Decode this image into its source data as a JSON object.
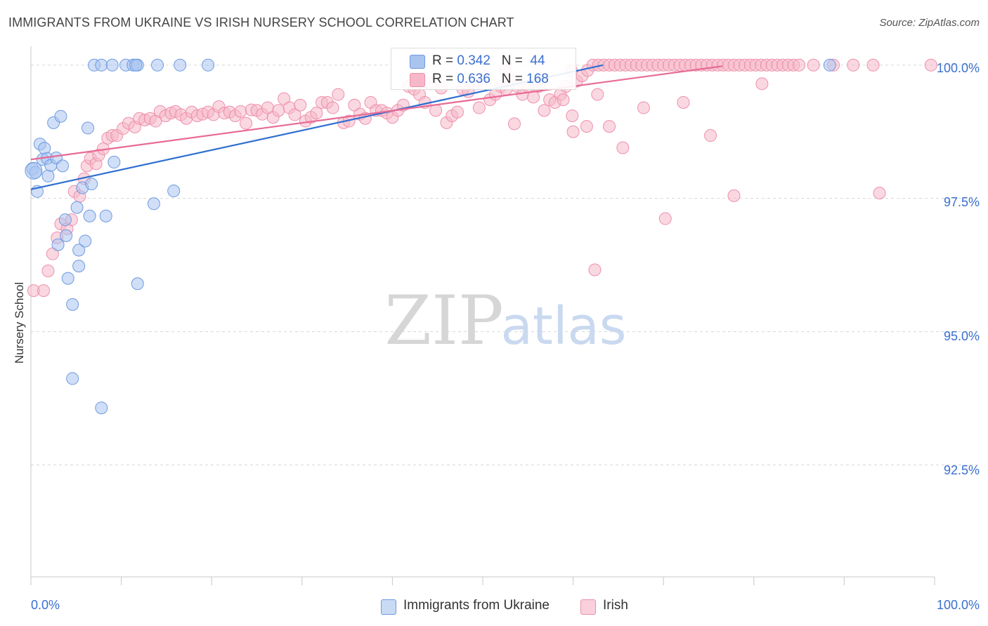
{
  "header": {
    "title": "IMMIGRANTS FROM UKRAINE VS IRISH NURSERY SCHOOL CORRELATION CHART",
    "source": "Source: ZipAtlas.com"
  },
  "watermark": {
    "zip": "ZIP",
    "atlas": "atlas"
  },
  "stats": {
    "ukraine": {
      "r_label": "R = ",
      "r_value": "0.342",
      "n_label": "N = ",
      "n_value": "44"
    },
    "irish": {
      "r_label": "R = ",
      "r_value": "0.636",
      "n_label": "N = ",
      "n_value": "168"
    }
  },
  "legend": {
    "ukraine": "Immigrants from Ukraine",
    "irish": "Irish"
  },
  "colors": {
    "ukraine_fill": "#aac4f0",
    "ukraine_stroke": "#6e9ae0",
    "ukraine_line": "#2f6fd0",
    "irish_fill": "#f6b8c8",
    "irish_stroke": "#ee8fac",
    "irish_line": "#e76a94",
    "grid": "#d8d8d8",
    "tick_text": "#3a6fd0"
  },
  "chart_data": {
    "type": "scatter",
    "title": "IMMIGRANTS FROM UKRAINE VS IRISH NURSERY SCHOOL CORRELATION CHART",
    "xlabel": "",
    "ylabel": "Nursery School",
    "xlim": [
      0,
      100
    ],
    "ylim": [
      90.4,
      100.3
    ],
    "x_tick_labels": [
      "0.0%",
      "100.0%"
    ],
    "y_ticks": [
      92.5,
      95.0,
      97.5,
      100.0
    ],
    "y_tick_labels": [
      "92.5%",
      "95.0%",
      "97.5%",
      "100.0%"
    ],
    "series": [
      {
        "name": "Immigrants from Ukraine",
        "r": 0.342,
        "n": 44,
        "trend": {
          "x": [
            0,
            63.3
          ],
          "y": [
            97.67,
            100.0
          ]
        },
        "points": [
          [
            0.2,
            98.05
          ],
          [
            0.5,
            97.99
          ],
          [
            0.7,
            97.63
          ],
          [
            1.0,
            98.52
          ],
          [
            1.3,
            98.23
          ],
          [
            1.5,
            98.44
          ],
          [
            1.8,
            98.25
          ],
          [
            1.9,
            97.92
          ],
          [
            2.2,
            98.12
          ],
          [
            2.5,
            98.92
          ],
          [
            2.8,
            98.26
          ],
          [
            3.3,
            99.04
          ],
          [
            3.5,
            98.11
          ],
          [
            3.0,
            96.63
          ],
          [
            3.8,
            97.1
          ],
          [
            3.9,
            96.8
          ],
          [
            4.1,
            96.0
          ],
          [
            4.6,
            95.51
          ],
          [
            4.6,
            94.12
          ],
          [
            5.1,
            97.33
          ],
          [
            5.3,
            96.53
          ],
          [
            5.3,
            96.23
          ],
          [
            5.7,
            97.7
          ],
          [
            6.0,
            96.7
          ],
          [
            6.3,
            98.82
          ],
          [
            6.5,
            97.17
          ],
          [
            6.7,
            97.77
          ],
          [
            7.0,
            100.0
          ],
          [
            7.8,
            100.0
          ],
          [
            7.8,
            93.57
          ],
          [
            8.3,
            97.17
          ],
          [
            9.0,
            100.0
          ],
          [
            9.2,
            98.18
          ],
          [
            10.5,
            100.0
          ],
          [
            11.3,
            100.0
          ],
          [
            11.8,
            100.0
          ],
          [
            11.6,
            100.0
          ],
          [
            11.8,
            95.9
          ],
          [
            13.6,
            97.4
          ],
          [
            14.0,
            100.0
          ],
          [
            15.8,
            97.64
          ],
          [
            16.5,
            100.0
          ],
          [
            19.6,
            100.0
          ],
          [
            88.4,
            100.0
          ]
        ]
      },
      {
        "name": "Irish",
        "r": 0.636,
        "n": 168,
        "trend": {
          "x": [
            0,
            76.5
          ],
          "y": [
            98.23,
            99.98
          ]
        },
        "points": [
          [
            0.3,
            95.77
          ],
          [
            1.4,
            95.77
          ],
          [
            1.9,
            96.14
          ],
          [
            2.4,
            96.46
          ],
          [
            2.9,
            96.76
          ],
          [
            3.3,
            97.02
          ],
          [
            4.0,
            96.93
          ],
          [
            4.5,
            97.1
          ],
          [
            4.8,
            97.63
          ],
          [
            5.4,
            97.54
          ],
          [
            5.9,
            97.87
          ],
          [
            6.2,
            98.11
          ],
          [
            6.6,
            98.25
          ],
          [
            7.2,
            98.15
          ],
          [
            7.5,
            98.31
          ],
          [
            8.0,
            98.43
          ],
          [
            8.5,
            98.63
          ],
          [
            9.0,
            98.68
          ],
          [
            9.5,
            98.68
          ],
          [
            10.2,
            98.81
          ],
          [
            10.8,
            98.91
          ],
          [
            11.5,
            98.84
          ],
          [
            12.0,
            99.0
          ],
          [
            12.6,
            98.97
          ],
          [
            13.2,
            99.0
          ],
          [
            13.8,
            98.95
          ],
          [
            14.3,
            99.13
          ],
          [
            14.9,
            99.05
          ],
          [
            15.5,
            99.1
          ],
          [
            16.0,
            99.13
          ],
          [
            16.6,
            99.07
          ],
          [
            17.2,
            99.0
          ],
          [
            17.8,
            99.12
          ],
          [
            18.4,
            99.05
          ],
          [
            19.0,
            99.08
          ],
          [
            19.6,
            99.12
          ],
          [
            20.2,
            99.07
          ],
          [
            20.8,
            99.22
          ],
          [
            21.4,
            99.1
          ],
          [
            22.0,
            99.12
          ],
          [
            22.6,
            99.05
          ],
          [
            23.2,
            99.13
          ],
          [
            23.8,
            98.91
          ],
          [
            24.4,
            99.16
          ],
          [
            25.0,
            99.15
          ],
          [
            25.6,
            99.08
          ],
          [
            26.2,
            99.2
          ],
          [
            26.8,
            99.02
          ],
          [
            27.4,
            99.15
          ],
          [
            28.0,
            99.37
          ],
          [
            28.6,
            99.2
          ],
          [
            29.2,
            99.07
          ],
          [
            29.8,
            99.25
          ],
          [
            30.4,
            98.95
          ],
          [
            31.0,
            99.02
          ],
          [
            31.6,
            99.1
          ],
          [
            32.2,
            99.3
          ],
          [
            32.8,
            99.3
          ],
          [
            33.4,
            99.2
          ],
          [
            34.0,
            99.45
          ],
          [
            34.6,
            98.92
          ],
          [
            35.2,
            98.95
          ],
          [
            35.8,
            99.25
          ],
          [
            36.4,
            99.08
          ],
          [
            37.0,
            99.0
          ],
          [
            37.6,
            99.3
          ],
          [
            38.2,
            99.15
          ],
          [
            38.8,
            99.15
          ],
          [
            39.4,
            99.1
          ],
          [
            40.0,
            99.02
          ],
          [
            40.6,
            99.15
          ],
          [
            41.2,
            99.25
          ],
          [
            41.8,
            99.6
          ],
          [
            42.4,
            99.55
          ],
          [
            43.0,
            99.45
          ],
          [
            43.6,
            99.3
          ],
          [
            44.2,
            99.65
          ],
          [
            44.8,
            99.15
          ],
          [
            45.4,
            99.57
          ],
          [
            46.0,
            98.92
          ],
          [
            46.6,
            99.05
          ],
          [
            47.2,
            99.12
          ],
          [
            47.8,
            99.55
          ],
          [
            48.4,
            99.5
          ],
          [
            49.0,
            99.65
          ],
          [
            49.6,
            99.2
          ],
          [
            50.2,
            99.8
          ],
          [
            50.8,
            99.35
          ],
          [
            51.4,
            99.45
          ],
          [
            52.0,
            99.6
          ],
          [
            52.6,
            99.55
          ],
          [
            53.2,
            99.7
          ],
          [
            53.8,
            99.6
          ],
          [
            54.4,
            99.45
          ],
          [
            55.0,
            99.6
          ],
          [
            55.6,
            99.4
          ],
          [
            56.2,
            99.6
          ],
          [
            56.8,
            99.15
          ],
          [
            57.4,
            99.35
          ],
          [
            58.0,
            99.3
          ],
          [
            58.6,
            99.45
          ],
          [
            59.2,
            99.6
          ],
          [
            59.8,
            99.9
          ],
          [
            60.4,
            99.7
          ],
          [
            61.0,
            99.8
          ],
          [
            61.6,
            99.9
          ],
          [
            62.2,
            100.0
          ],
          [
            62.8,
            100.0
          ],
          [
            63.4,
            100.0
          ],
          [
            64.0,
            100.0
          ],
          [
            64.6,
            100.0
          ],
          [
            65.2,
            100.0
          ],
          [
            65.8,
            100.0
          ],
          [
            66.4,
            100.0
          ],
          [
            67.0,
            100.0
          ],
          [
            67.6,
            100.0
          ],
          [
            68.2,
            100.0
          ],
          [
            68.8,
            100.0
          ],
          [
            69.4,
            100.0
          ],
          [
            70.0,
            100.0
          ],
          [
            70.6,
            100.0
          ],
          [
            71.2,
            100.0
          ],
          [
            71.8,
            100.0
          ],
          [
            72.4,
            100.0
          ],
          [
            73.0,
            100.0
          ],
          [
            73.6,
            100.0
          ],
          [
            74.2,
            100.0
          ],
          [
            74.8,
            100.0
          ],
          [
            75.4,
            100.0
          ],
          [
            76.0,
            100.0
          ],
          [
            76.6,
            100.0
          ],
          [
            77.2,
            100.0
          ],
          [
            77.8,
            100.0
          ],
          [
            78.4,
            100.0
          ],
          [
            79.0,
            100.0
          ],
          [
            79.6,
            100.0
          ],
          [
            80.2,
            100.0
          ],
          [
            80.8,
            100.0
          ],
          [
            81.4,
            100.0
          ],
          [
            82.0,
            100.0
          ],
          [
            82.6,
            100.0
          ],
          [
            83.2,
            100.0
          ],
          [
            83.8,
            100.0
          ],
          [
            84.4,
            100.0
          ],
          [
            85.0,
            100.0
          ],
          [
            86.6,
            100.0
          ],
          [
            88.8,
            100.0
          ],
          [
            91.0,
            100.0
          ],
          [
            93.2,
            100.0
          ],
          [
            99.6,
            100.0
          ],
          [
            52.5,
            99.9
          ],
          [
            53.5,
            98.9
          ],
          [
            56.6,
            99.75
          ],
          [
            58.9,
            99.35
          ],
          [
            60.0,
            98.75
          ],
          [
            61.5,
            98.85
          ],
          [
            62.7,
            99.45
          ],
          [
            64.0,
            98.85
          ],
          [
            67.8,
            99.2
          ],
          [
            70.2,
            97.12
          ],
          [
            72.2,
            99.3
          ],
          [
            75.2,
            98.68
          ],
          [
            77.8,
            97.55
          ],
          [
            80.9,
            99.65
          ],
          [
            93.9,
            97.6
          ],
          [
            59.9,
            99.05
          ],
          [
            65.5,
            98.45
          ],
          [
            62.4,
            96.16
          ]
        ]
      }
    ]
  }
}
